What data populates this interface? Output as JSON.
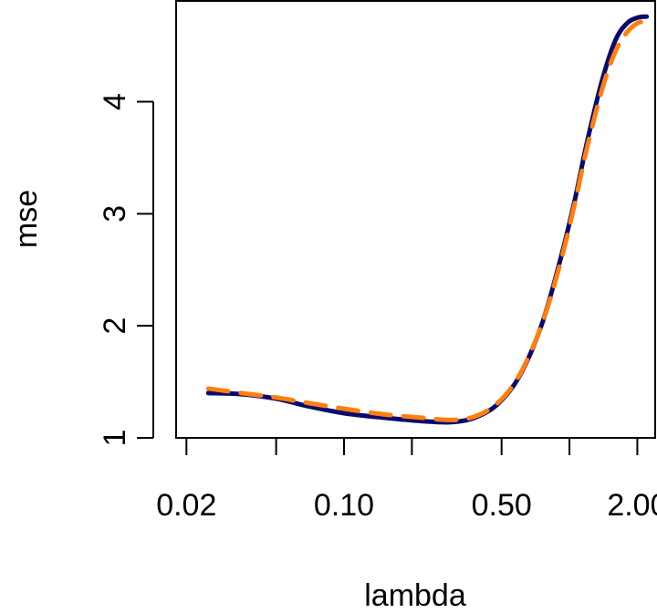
{
  "chart_data": {
    "type": "line",
    "title": "",
    "xlabel": "lambda",
    "ylabel": "mse",
    "x_scale": "log",
    "xlim": [
      0.018,
      2.4
    ],
    "ylim": [
      1.0,
      4.9
    ],
    "x_major_ticks": [
      0.02,
      0.05,
      0.1,
      0.2,
      0.5,
      1.0,
      2.0
    ],
    "x_tick_labels": [
      {
        "value": 0.02,
        "label": "0.02"
      },
      {
        "value": 0.1,
        "label": "0.10"
      },
      {
        "value": 0.5,
        "label": "0.50"
      },
      {
        "value": 2.0,
        "label": "2.00"
      }
    ],
    "y_ticks": [
      1,
      2,
      3,
      4
    ],
    "y_tick_labels": [
      "1",
      "2",
      "3",
      "4"
    ],
    "grid": false,
    "legend": "none",
    "series": [
      {
        "style": "solid",
        "color": "#0a0a6e",
        "x": [
          0.025,
          0.035,
          0.05,
          0.07,
          0.1,
          0.15,
          0.22,
          0.3,
          0.38,
          0.48,
          0.6,
          0.75,
          0.9,
          1.05,
          1.2,
          1.4,
          1.6,
          1.8,
          2.0,
          2.2
        ],
        "y": [
          1.4,
          1.39,
          1.35,
          1.28,
          1.22,
          1.18,
          1.15,
          1.14,
          1.18,
          1.3,
          1.55,
          2.0,
          2.55,
          3.1,
          3.65,
          4.2,
          4.55,
          4.7,
          4.75,
          4.76
        ]
      },
      {
        "style": "dashed",
        "color": "#ff7f0e",
        "x": [
          0.025,
          0.035,
          0.05,
          0.07,
          0.1,
          0.15,
          0.22,
          0.3,
          0.38,
          0.48,
          0.6,
          0.75,
          0.9,
          1.05,
          1.2,
          1.4,
          1.6,
          1.8,
          2.0,
          2.2
        ],
        "y": [
          1.44,
          1.4,
          1.36,
          1.31,
          1.26,
          1.21,
          1.18,
          1.16,
          1.19,
          1.31,
          1.56,
          2.0,
          2.52,
          3.07,
          3.6,
          4.12,
          4.45,
          4.62,
          4.7,
          4.72
        ]
      }
    ]
  },
  "colors": {
    "axis": "#000000",
    "series_solid": "#0a0a6e",
    "series_dashed": "#ff7f0e"
  }
}
